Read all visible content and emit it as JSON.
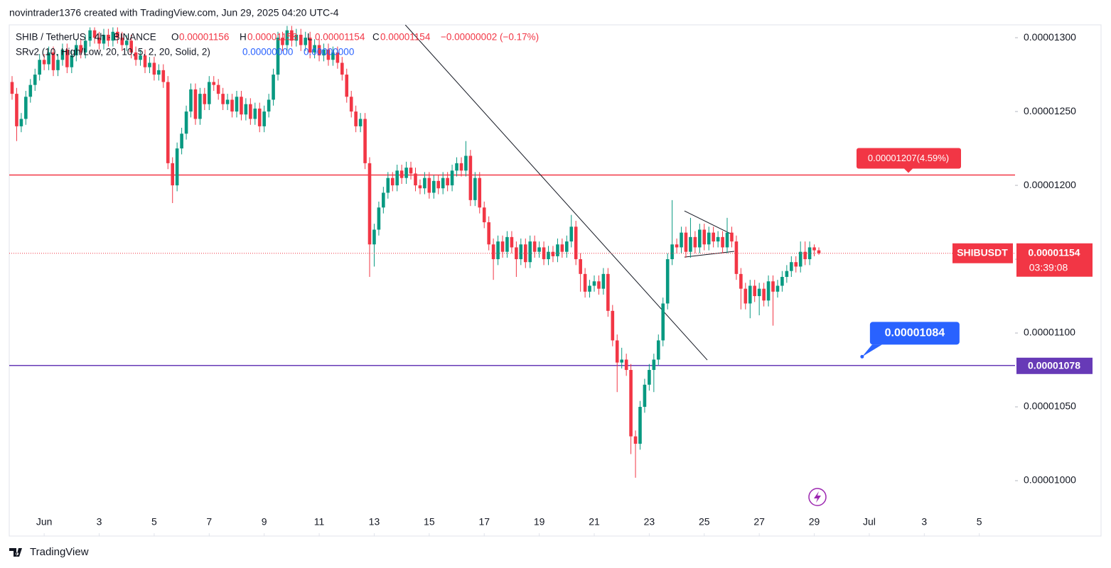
{
  "chart_data": {
    "type": "candlestick",
    "title": "novintrader1376 created with TradingView.com, Jun 29, 2025 04:20 UTC-4",
    "legend": {
      "symbol": "SHIB / TetherUS · 4h · BINANCE",
      "ohlc": [
        {
          "key": "O",
          "value": "0.00001156"
        },
        {
          "key": "H",
          "value": "0.00001158"
        },
        {
          "key": "L",
          "value": "0.00001154"
        },
        {
          "key": "C",
          "value": "0.00001154"
        }
      ],
      "change": "−0.00000002 (−0.17%)",
      "indicator": "SRv2 (10, High/Low, 20, 10, 5, 2, 20, Solid, 2)",
      "indicator_values": [
        "0.00000000",
        "0.00000000"
      ]
    },
    "up_color": "#089981",
    "down_color": "#f23645",
    "xlim": [
      -0.27,
      36.3
    ],
    "ylim": [
      9.625e-06,
      1.3087e-05
    ],
    "xticks": [
      {
        "value": 1,
        "label": "Jun"
      },
      3,
      5,
      7,
      9,
      11,
      13,
      15,
      17,
      19,
      21,
      23,
      25,
      27,
      29,
      {
        "value": 31,
        "label": "Jul"
      },
      {
        "value": 33,
        "label": "3"
      },
      {
        "value": 35,
        "label": "5"
      }
    ],
    "yticks": [
      {
        "value": 1e-05,
        "label": "0.00001000"
      },
      {
        "value": 1.05e-05,
        "label": "0.00001050"
      },
      {
        "value": 1.1e-05,
        "label": "0.00001100"
      },
      {
        "value": 1.15e-05,
        "label": "0.00001150"
      },
      {
        "value": 1.2e-05,
        "label": "0.00001200"
      },
      {
        "value": 1.25e-05,
        "label": "0.00001250"
      },
      {
        "value": 1.3e-05,
        "label": "0.00001300"
      }
    ],
    "x": [
      -0.167,
      0,
      0.167,
      0.333,
      0.5,
      0.667,
      0.833,
      1,
      1.167,
      1.333,
      1.5,
      1.667,
      1.833,
      2,
      2.167,
      2.333,
      2.5,
      2.667,
      2.833,
      3,
      3.167,
      3.333,
      3.5,
      3.667,
      3.833,
      4,
      4.167,
      4.333,
      4.5,
      4.667,
      4.833,
      5,
      5.167,
      5.333,
      5.5,
      5.667,
      5.833,
      6,
      6.167,
      6.333,
      6.5,
      6.667,
      6.833,
      7,
      7.167,
      7.333,
      7.5,
      7.667,
      7.833,
      8,
      8.167,
      8.333,
      8.5,
      8.667,
      8.833,
      9,
      9.167,
      9.333,
      9.5,
      9.667,
      9.833,
      10,
      10.167,
      10.333,
      10.5,
      10.667,
      10.833,
      11,
      11.167,
      11.333,
      11.5,
      11.667,
      11.833,
      12,
      12.167,
      12.333,
      12.5,
      12.667,
      12.833,
      13,
      13.167,
      13.333,
      13.5,
      13.667,
      13.833,
      14,
      14.167,
      14.333,
      14.5,
      14.667,
      14.833,
      15,
      15.167,
      15.333,
      15.5,
      15.667,
      15.833,
      16,
      16.167,
      16.333,
      16.5,
      16.667,
      16.833,
      17,
      17.167,
      17.333,
      17.5,
      17.667,
      17.833,
      18,
      18.167,
      18.333,
      18.5,
      18.667,
      18.833,
      19,
      19.167,
      19.333,
      19.5,
      19.667,
      19.833,
      20,
      20.167,
      20.333,
      20.5,
      20.667,
      20.833,
      21,
      21.167,
      21.333,
      21.5,
      21.667,
      21.833,
      22,
      22.167,
      22.333,
      22.5,
      22.667,
      22.833,
      23,
      23.167,
      23.333,
      23.5,
      23.667,
      23.833,
      24,
      24.167,
      24.333,
      24.5,
      24.667,
      24.833,
      25,
      25.167,
      25.333,
      25.5,
      25.667,
      25.833,
      26,
      26.167,
      26.333,
      26.5,
      26.667,
      26.833,
      27,
      27.167,
      27.333,
      27.5,
      27.667,
      27.833,
      28,
      28.167,
      28.333,
      28.5,
      28.667,
      28.833,
      29,
      29.167
    ],
    "open": [
      1.27e-05,
      1.262e-05,
      1.24e-05,
      1.245e-05,
      1.26e-05,
      1.268e-05,
      1.275e-05,
      1.285e-05,
      1.282e-05,
      1.29e-05,
      1.278e-05,
      1.285e-05,
      1.292e-05,
      1.28e-05,
      1.288e-05,
      1.295e-05,
      1.29e-05,
      1.298e-05,
      1.305e-05,
      1.3e-05,
      1.296e-05,
      1.302e-05,
      1.298e-05,
      1.304e-05,
      1.3e-05,
      1.295e-05,
      1.298e-05,
      1.29e-05,
      1.285e-05,
      1.288e-05,
      1.28e-05,
      1.283e-05,
      1.275e-05,
      1.278e-05,
      1.27e-05,
      1.215e-05,
      1.2e-05,
      1.225e-05,
      1.235e-05,
      1.25e-05,
      1.265e-05,
      1.245e-05,
      1.262e-05,
      1.255e-05,
      1.27e-05,
      1.268e-05,
      1.262e-05,
      1.255e-05,
      1.258e-05,
      1.25e-05,
      1.26e-05,
      1.248e-05,
      1.255e-05,
      1.245e-05,
      1.252e-05,
      1.24e-05,
      1.25e-05,
      1.258e-05,
      1.275e-05,
      1.3e-05,
      1.295e-05,
      1.305e-05,
      1.298e-05,
      1.302e-05,
      1.295e-05,
      1.3e-05,
      1.29e-05,
      1.295e-05,
      1.288e-05,
      1.292e-05,
      1.285e-05,
      1.29e-05,
      1.283e-05,
      1.275e-05,
      1.26e-05,
      1.25e-05,
      1.24e-05,
      1.245e-05,
      1.215e-05,
      1.16e-05,
      1.17e-05,
      1.185e-05,
      1.195e-05,
      1.205e-05,
      1.2e-05,
      1.21e-05,
      1.205e-05,
      1.212e-05,
      1.208e-05,
      1.2e-05,
      1.198e-05,
      1.205e-05,
      1.195e-05,
      1.203e-05,
      1.198e-05,
      1.205e-05,
      1.2e-05,
      1.21e-05,
      1.215e-05,
      1.21e-05,
      1.22e-05,
      1.19e-05,
      1.205e-05,
      1.185e-05,
      1.175e-05,
      1.16e-05,
      1.15e-05,
      1.162e-05,
      1.155e-05,
      1.165e-05,
      1.158e-05,
      1.15e-05,
      1.16e-05,
      1.148e-05,
      1.162e-05,
      1.155e-05,
      1.158e-05,
      1.15e-05,
      1.155e-05,
      1.152e-05,
      1.16e-05,
      1.155e-05,
      1.162e-05,
      1.172e-05,
      1.15e-05,
      1.14e-05,
      1.128e-05,
      1.132e-05,
      1.135e-05,
      1.13e-05,
      1.14e-05,
      1.115e-05,
      1.095e-05,
      1.08e-05,
      1.082e-05,
      1.075e-05,
      1.03e-05,
      1.025e-05,
      1.05e-05,
      1.065e-05,
      1.075e-05,
      1.082e-05,
      1.095e-05,
      1.12e-05,
      1.15e-05,
      1.16e-05,
      1.158e-05,
      1.168e-05,
      1.155e-05,
      1.165e-05,
      1.158e-05,
      1.17e-05,
      1.16e-05,
      1.168e-05,
      1.162e-05,
      1.165e-05,
      1.158e-05,
      1.168e-05,
      1.162e-05,
      1.14e-05,
      1.13e-05,
      1.12e-05,
      1.132e-05,
      1.125e-05,
      1.13e-05,
      1.122e-05,
      1.135e-05,
      1.128e-05,
      1.132e-05,
      1.138e-05,
      1.142e-05,
      1.148e-05,
      1.145e-05,
      1.155e-05,
      1.15e-05,
      1.158e-05,
      1.156e-05
    ],
    "high": [
      1.274e-05,
      1.266e-05,
      1.249e-05,
      1.264e-05,
      1.272e-05,
      1.279e-05,
      1.289e-05,
      1.289e-05,
      1.294e-05,
      1.294e-05,
      1.289e-05,
      1.296e-05,
      1.296e-05,
      1.292e-05,
      1.299e-05,
      1.299e-05,
      1.302e-05,
      1.307e-05,
      1.307e-05,
      1.304e-05,
      1.306e-05,
      1.306e-05,
      1.307e-05,
      1.307e-05,
      1.304e-05,
      1.302e-05,
      1.302e-05,
      1.294e-05,
      1.292e-05,
      1.292e-05,
      1.287e-05,
      1.287e-05,
      1.282e-05,
      1.282e-05,
      1.274e-05,
      1.219e-05,
      1.229e-05,
      1.239e-05,
      1.254e-05,
      1.269e-05,
      1.269e-05,
      1.266e-05,
      1.266e-05,
      1.274e-05,
      1.274e-05,
      1.272e-05,
      1.266e-05,
      1.262e-05,
      1.262e-05,
      1.264e-05,
      1.264e-05,
      1.259e-05,
      1.259e-05,
      1.256e-05,
      1.256e-05,
      1.254e-05,
      1.262e-05,
      1.279e-05,
      1.304e-05,
      1.304e-05,
      1.308e-05,
      1.308e-05,
      1.306e-05,
      1.306e-05,
      1.304e-05,
      1.304e-05,
      1.299e-05,
      1.299e-05,
      1.296e-05,
      1.296e-05,
      1.294e-05,
      1.294e-05,
      1.287e-05,
      1.279e-05,
      1.264e-05,
      1.254e-05,
      1.249e-05,
      1.249e-05,
      1.219e-05,
      1.174e-05,
      1.189e-05,
      1.199e-05,
      1.209e-05,
      1.209e-05,
      1.214e-05,
      1.214e-05,
      1.216e-05,
      1.216e-05,
      1.212e-05,
      1.204e-05,
      1.209e-05,
      1.209e-05,
      1.207e-05,
      1.207e-05,
      1.209e-05,
      1.209e-05,
      1.214e-05,
      1.219e-05,
      1.219e-05,
      1.23e-05,
      1.224e-05,
      1.209e-05,
      1.209e-05,
      1.189e-05,
      1.179e-05,
      1.164e-05,
      1.166e-05,
      1.166e-05,
      1.169e-05,
      1.169e-05,
      1.162e-05,
      1.164e-05,
      1.164e-05,
      1.166e-05,
      1.166e-05,
      1.162e-05,
      1.162e-05,
      1.159e-05,
      1.159e-05,
      1.164e-05,
      1.164e-05,
      1.166e-05,
      1.18e-05,
      1.176e-05,
      1.154e-05,
      1.144e-05,
      1.136e-05,
      1.139e-05,
      1.139e-05,
      1.144e-05,
      1.144e-05,
      1.119e-05,
      1.099e-05,
      1.09e-05,
      1.086e-05,
      1.079e-05,
      1.034e-05,
      1.054e-05,
      1.069e-05,
      1.079e-05,
      1.086e-05,
      1.099e-05,
      1.124e-05,
      1.154e-05,
      1.19e-05,
      1.164e-05,
      1.172e-05,
      1.172e-05,
      1.178e-05,
      1.169e-05,
      1.174e-05,
      1.174e-05,
      1.172e-05,
      1.172e-05,
      1.169e-05,
      1.169e-05,
      1.178e-05,
      1.172e-05,
      1.166e-05,
      1.144e-05,
      1.134e-05,
      1.136e-05,
      1.136e-05,
      1.134e-05,
      1.134e-05,
      1.139e-05,
      1.139e-05,
      1.136e-05,
      1.142e-05,
      1.146e-05,
      1.152e-05,
      1.152e-05,
      1.162e-05,
      1.162e-05,
      1.162e-05,
      1.16e-05,
      1.158e-05
    ],
    "low": [
      1.258e-05,
      1.23e-05,
      1.236e-05,
      1.241e-05,
      1.256e-05,
      1.264e-05,
      1.271e-05,
      1.278e-05,
      1.278e-05,
      1.274e-05,
      1.274e-05,
      1.281e-05,
      1.276e-05,
      1.276e-05,
      1.284e-05,
      1.286e-05,
      1.286e-05,
      1.294e-05,
      1.296e-05,
      1.292e-05,
      1.292e-05,
      1.294e-05,
      1.294e-05,
      1.296e-05,
      1.291e-05,
      1.291e-05,
      1.286e-05,
      1.281e-05,
      1.281e-05,
      1.276e-05,
      1.276e-05,
      1.271e-05,
      1.271e-05,
      1.266e-05,
      1.211e-05,
      1.188e-05,
      1.196e-05,
      1.221e-05,
      1.231e-05,
      1.246e-05,
      1.241e-05,
      1.241e-05,
      1.251e-05,
      1.251e-05,
      1.264e-05,
      1.258e-05,
      1.251e-05,
      1.251e-05,
      1.246e-05,
      1.246e-05,
      1.244e-05,
      1.244e-05,
      1.241e-05,
      1.241e-05,
      1.236e-05,
      1.236e-05,
      1.246e-05,
      1.254e-05,
      1.271e-05,
      1.291e-05,
      1.291e-05,
      1.294e-05,
      1.294e-05,
      1.291e-05,
      1.291e-05,
      1.286e-05,
      1.286e-05,
      1.284e-05,
      1.284e-05,
      1.281e-05,
      1.281e-05,
      1.279e-05,
      1.271e-05,
      1.256e-05,
      1.246e-05,
      1.236e-05,
      1.236e-05,
      1.211e-05,
      1.138e-05,
      1.145e-05,
      1.166e-05,
      1.181e-05,
      1.191e-05,
      1.196e-05,
      1.196e-05,
      1.201e-05,
      1.201e-05,
      1.204e-05,
      1.196e-05,
      1.194e-05,
      1.194e-05,
      1.191e-05,
      1.191e-05,
      1.194e-05,
      1.194e-05,
      1.196e-05,
      1.196e-05,
      1.206e-05,
      1.206e-05,
      1.206e-05,
      1.186e-05,
      1.186e-05,
      1.181e-05,
      1.171e-05,
      1.156e-05,
      1.136e-05,
      1.146e-05,
      1.151e-05,
      1.151e-05,
      1.154e-05,
      1.138e-05,
      1.146e-05,
      1.144e-05,
      1.144e-05,
      1.151e-05,
      1.151e-05,
      1.146e-05,
      1.146e-05,
      1.148e-05,
      1.148e-05,
      1.151e-05,
      1.151e-05,
      1.158e-05,
      1.146e-05,
      1.128e-05,
      1.124e-05,
      1.124e-05,
      1.128e-05,
      1.126e-05,
      1.126e-05,
      1.111e-05,
      1.091e-05,
      1.06e-05,
      1.076e-05,
      1.071e-05,
      1.018e-05,
      1.002e-05,
      1.021e-05,
      1.046e-05,
      1.061e-05,
      1.06e-05,
      1.078e-05,
      1.091e-05,
      1.116e-05,
      1.146e-05,
      1.154e-05,
      1.154e-05,
      1.151e-05,
      1.151e-05,
      1.154e-05,
      1.154e-05,
      1.156e-05,
      1.156e-05,
      1.158e-05,
      1.158e-05,
      1.154e-05,
      1.154e-05,
      1.158e-05,
      1.136e-05,
      1.116e-05,
      1.116e-05,
      1.11e-05,
      1.121e-05,
      1.112e-05,
      1.118e-05,
      1.118e-05,
      1.105e-05,
      1.124e-05,
      1.128e-05,
      1.134e-05,
      1.138e-05,
      1.141e-05,
      1.141e-05,
      1.146e-05,
      1.146e-05,
      1.152e-05,
      1.153e-05
    ],
    "close": [
      1.262e-05,
      1.24e-05,
      1.245e-05,
      1.26e-05,
      1.268e-05,
      1.275e-05,
      1.285e-05,
      1.282e-05,
      1.29e-05,
      1.278e-05,
      1.285e-05,
      1.292e-05,
      1.28e-05,
      1.288e-05,
      1.295e-05,
      1.29e-05,
      1.298e-05,
      1.305e-05,
      1.3e-05,
      1.296e-05,
      1.302e-05,
      1.298e-05,
      1.304e-05,
      1.3e-05,
      1.295e-05,
      1.298e-05,
      1.29e-05,
      1.285e-05,
      1.288e-05,
      1.28e-05,
      1.283e-05,
      1.275e-05,
      1.278e-05,
      1.27e-05,
      1.215e-05,
      1.2e-05,
      1.225e-05,
      1.235e-05,
      1.25e-05,
      1.265e-05,
      1.245e-05,
      1.262e-05,
      1.255e-05,
      1.27e-05,
      1.268e-05,
      1.262e-05,
      1.255e-05,
      1.258e-05,
      1.25e-05,
      1.26e-05,
      1.248e-05,
      1.255e-05,
      1.245e-05,
      1.252e-05,
      1.24e-05,
      1.25e-05,
      1.258e-05,
      1.275e-05,
      1.3e-05,
      1.295e-05,
      1.305e-05,
      1.298e-05,
      1.302e-05,
      1.295e-05,
      1.3e-05,
      1.29e-05,
      1.295e-05,
      1.288e-05,
      1.292e-05,
      1.285e-05,
      1.29e-05,
      1.283e-05,
      1.275e-05,
      1.26e-05,
      1.25e-05,
      1.24e-05,
      1.245e-05,
      1.215e-05,
      1.16e-05,
      1.17e-05,
      1.185e-05,
      1.195e-05,
      1.205e-05,
      1.2e-05,
      1.21e-05,
      1.205e-05,
      1.212e-05,
      1.208e-05,
      1.2e-05,
      1.198e-05,
      1.205e-05,
      1.195e-05,
      1.203e-05,
      1.198e-05,
      1.205e-05,
      1.2e-05,
      1.21e-05,
      1.215e-05,
      1.21e-05,
      1.22e-05,
      1.19e-05,
      1.205e-05,
      1.185e-05,
      1.175e-05,
      1.16e-05,
      1.15e-05,
      1.162e-05,
      1.155e-05,
      1.165e-05,
      1.158e-05,
      1.15e-05,
      1.16e-05,
      1.148e-05,
      1.162e-05,
      1.155e-05,
      1.158e-05,
      1.15e-05,
      1.155e-05,
      1.152e-05,
      1.16e-05,
      1.155e-05,
      1.162e-05,
      1.172e-05,
      1.15e-05,
      1.14e-05,
      1.128e-05,
      1.132e-05,
      1.135e-05,
      1.13e-05,
      1.14e-05,
      1.115e-05,
      1.095e-05,
      1.08e-05,
      1.082e-05,
      1.075e-05,
      1.03e-05,
      1.025e-05,
      1.05e-05,
      1.065e-05,
      1.075e-05,
      1.082e-05,
      1.095e-05,
      1.12e-05,
      1.15e-05,
      1.16e-05,
      1.158e-05,
      1.168e-05,
      1.155e-05,
      1.165e-05,
      1.158e-05,
      1.17e-05,
      1.16e-05,
      1.168e-05,
      1.162e-05,
      1.165e-05,
      1.158e-05,
      1.168e-05,
      1.162e-05,
      1.14e-05,
      1.13e-05,
      1.12e-05,
      1.132e-05,
      1.125e-05,
      1.13e-05,
      1.122e-05,
      1.135e-05,
      1.128e-05,
      1.132e-05,
      1.138e-05,
      1.142e-05,
      1.148e-05,
      1.145e-05,
      1.155e-05,
      1.15e-05,
      1.158e-05,
      1.156e-05,
      1.154e-05
    ],
    "hlines": [
      {
        "value": 1.207e-05,
        "color": "#f23645",
        "label": "0.00001207(4.59%)"
      },
      {
        "value": 1.078e-05,
        "color": "#673ab7",
        "label": "0.00001078"
      }
    ],
    "last_price": {
      "symbol": "SHIBUSDT",
      "value": 1.154e-05,
      "label": "0.00001154",
      "countdown": "03:39:08",
      "color": "#f23645"
    },
    "price_note": {
      "x": 30.74,
      "value": 1.084e-05,
      "label": "0.00001084",
      "color": "#2962ff"
    },
    "trendlines": [
      {
        "x": [
          14.13,
          25.11
        ],
        "y": [
          1.3087e-05,
          1.0817e-05
        ]
      },
      {
        "x": [
          24.28,
          26.01
        ],
        "y": [
          1.1827e-05,
          1.1668e-05
        ]
      },
      {
        "x": [
          24.28,
          26.09
        ],
        "y": [
          1.1514e-05,
          1.1553e-05
        ]
      }
    ],
    "footer": "TradingView"
  }
}
